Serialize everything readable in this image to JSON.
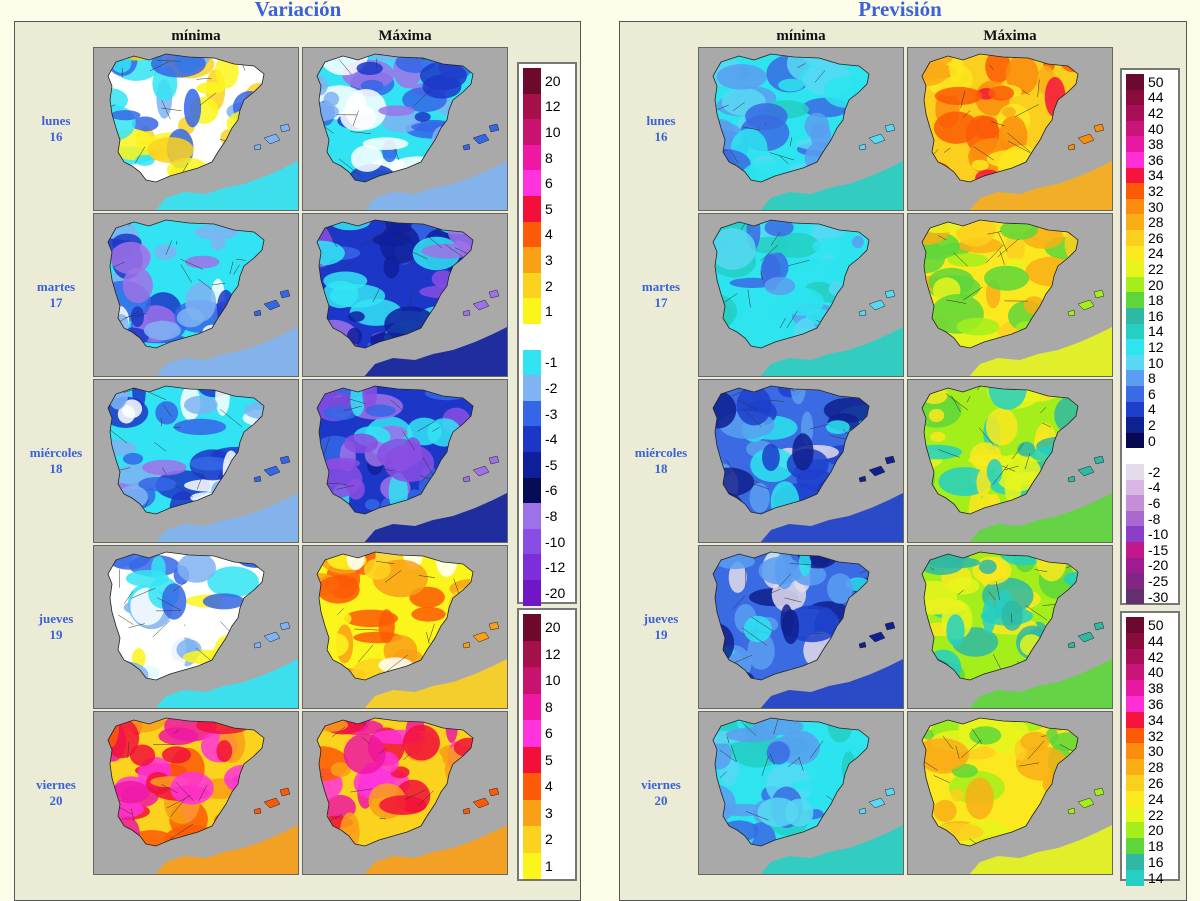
{
  "variacion": {
    "title": "Variación",
    "col_min": "mínima",
    "col_max": "Máxima",
    "days": [
      {
        "weekday": "lunes",
        "day": "16",
        "min_tone": "mixed-cool",
        "max_tone": "cold"
      },
      {
        "weekday": "martes",
        "day": "17",
        "min_tone": "cold",
        "max_tone": "very-cold"
      },
      {
        "weekday": "miércoles",
        "day": "18",
        "min_tone": "cold",
        "max_tone": "very-cold"
      },
      {
        "weekday": "jueves",
        "day": "19",
        "min_tone": "cool",
        "max_tone": "warm"
      },
      {
        "weekday": "viernes",
        "day": "20",
        "min_tone": "hot",
        "max_tone": "hot"
      }
    ],
    "legend_top": [
      {
        "label": "20",
        "color": "#6d0a2b"
      },
      {
        "label": "12",
        "color": "#a50f4a"
      },
      {
        "label": "10",
        "color": "#c8136e"
      },
      {
        "label": "8",
        "color": "#ef18a4"
      },
      {
        "label": "6",
        "color": "#ff33dd"
      },
      {
        "label": "5",
        "color": "#f2103a"
      },
      {
        "label": "4",
        "color": "#fc5a06"
      },
      {
        "label": "3",
        "color": "#f9a016"
      },
      {
        "label": "2",
        "color": "#fbd21e"
      },
      {
        "label": "1",
        "color": "#fbf51c"
      },
      {
        "label": "",
        "color": "#ffffff"
      },
      {
        "label": "-1",
        "color": "#32e4f3"
      },
      {
        "label": "-2",
        "color": "#7fb3f2"
      },
      {
        "label": "-3",
        "color": "#3566e6"
      },
      {
        "label": "-4",
        "color": "#1c37c8"
      },
      {
        "label": "-5",
        "color": "#0f1f9c"
      },
      {
        "label": "-6",
        "color": "#060c55"
      },
      {
        "label": "-8",
        "color": "#9d72e8"
      },
      {
        "label": "-10",
        "color": "#8a4de3"
      },
      {
        "label": "-12",
        "color": "#7d2ed9"
      },
      {
        "label": "-20",
        "color": "#6f17c4"
      }
    ],
    "legend_bottom": [
      {
        "label": "20",
        "color": "#6d0a2b"
      },
      {
        "label": "12",
        "color": "#a50f4a"
      },
      {
        "label": "10",
        "color": "#c8136e"
      },
      {
        "label": "8",
        "color": "#ef18a4"
      },
      {
        "label": "6",
        "color": "#ff33dd"
      },
      {
        "label": "5",
        "color": "#f2103a"
      },
      {
        "label": "4",
        "color": "#fc5a06"
      },
      {
        "label": "3",
        "color": "#f9a016"
      },
      {
        "label": "2",
        "color": "#fbd21e"
      },
      {
        "label": "1",
        "color": "#fbf51c"
      }
    ]
  },
  "prevision": {
    "title": "Previsión",
    "col_min": "mínima",
    "col_max": "Máxima",
    "days": [
      {
        "weekday": "lunes",
        "day": "16",
        "min_tone": "p-min-mild",
        "max_tone": "p-max-hot"
      },
      {
        "weekday": "martes",
        "day": "17",
        "min_tone": "p-min-mild",
        "max_tone": "p-max-warm"
      },
      {
        "weekday": "miércoles",
        "day": "18",
        "min_tone": "p-min-cold",
        "max_tone": "p-max-mild"
      },
      {
        "weekday": "jueves",
        "day": "19",
        "min_tone": "p-min-cold",
        "max_tone": "p-max-mild"
      },
      {
        "weekday": "viernes",
        "day": "20",
        "min_tone": "p-min-mild",
        "max_tone": "p-max-warm"
      }
    ],
    "legend_top": [
      {
        "label": "50",
        "color": "#6b0a2e"
      },
      {
        "label": "44",
        "color": "#8a0c3d"
      },
      {
        "label": "42",
        "color": "#a90f56"
      },
      {
        "label": "40",
        "color": "#c9147a"
      },
      {
        "label": "38",
        "color": "#e818a3"
      },
      {
        "label": "36",
        "color": "#ff2fd6"
      },
      {
        "label": "34",
        "color": "#f4143e"
      },
      {
        "label": "32",
        "color": "#fb5a06"
      },
      {
        "label": "30",
        "color": "#fa8c0e"
      },
      {
        "label": "28",
        "color": "#f9ae18"
      },
      {
        "label": "26",
        "color": "#fbcf1e"
      },
      {
        "label": "24",
        "color": "#fbe81e"
      },
      {
        "label": "22",
        "color": "#e7f51c"
      },
      {
        "label": "20",
        "color": "#a3ee1b"
      },
      {
        "label": "18",
        "color": "#5ed63a"
      },
      {
        "label": "16",
        "color": "#2fb8a4"
      },
      {
        "label": "14",
        "color": "#25cfc3"
      },
      {
        "label": "12",
        "color": "#2de4ef"
      },
      {
        "label": "10",
        "color": "#58d8f5"
      },
      {
        "label": "8",
        "color": "#5b9ef0"
      },
      {
        "label": "6",
        "color": "#3a6be3"
      },
      {
        "label": "4",
        "color": "#1d3fcb"
      },
      {
        "label": "2",
        "color": "#0f208f"
      },
      {
        "label": "0",
        "color": "#06094f"
      },
      {
        "label": "",
        "color": "#ffffff"
      },
      {
        "label": "-2",
        "color": "#e4dcea"
      },
      {
        "label": "-4",
        "color": "#d6b8e2"
      },
      {
        "label": "-6",
        "color": "#c48fd8"
      },
      {
        "label": "-8",
        "color": "#a969d1"
      },
      {
        "label": "-10",
        "color": "#8d3ec7"
      },
      {
        "label": "-15",
        "color": "#c0198c"
      },
      {
        "label": "-20",
        "color": "#9e1c93"
      },
      {
        "label": "-25",
        "color": "#822683"
      },
      {
        "label": "-30",
        "color": "#62306f"
      }
    ],
    "legend_bottom": [
      {
        "label": "50",
        "color": "#6b0a2e"
      },
      {
        "label": "44",
        "color": "#8a0c3d"
      },
      {
        "label": "42",
        "color": "#a90f56"
      },
      {
        "label": "40",
        "color": "#c9147a"
      },
      {
        "label": "38",
        "color": "#e818a3"
      },
      {
        "label": "36",
        "color": "#ff2fd6"
      },
      {
        "label": "34",
        "color": "#f4143e"
      },
      {
        "label": "32",
        "color": "#fb5a06"
      },
      {
        "label": "30",
        "color": "#fa8c0e"
      },
      {
        "label": "28",
        "color": "#f9ae18"
      },
      {
        "label": "26",
        "color": "#fbcf1e"
      },
      {
        "label": "24",
        "color": "#fbe81e"
      },
      {
        "label": "22",
        "color": "#e7f51c"
      },
      {
        "label": "20",
        "color": "#a3ee1b"
      },
      {
        "label": "18",
        "color": "#5ed63a"
      },
      {
        "label": "16",
        "color": "#2fb8a4"
      },
      {
        "label": "14",
        "color": "#25cfc3"
      }
    ]
  },
  "colors": {
    "title": "#3a63d8",
    "sea": "#a9a9a9",
    "background": "#fdfde9",
    "frame": "#ecebd6"
  }
}
